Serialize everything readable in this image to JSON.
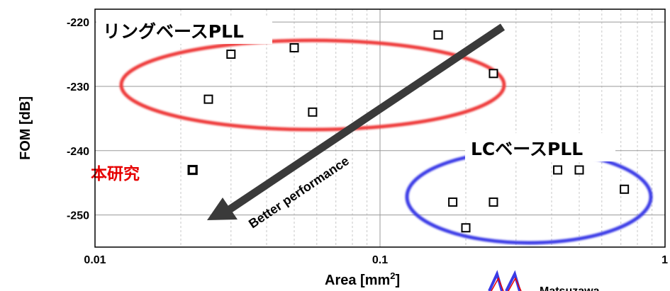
{
  "chart_data": {
    "type": "scatter",
    "xlabel_main": "Area [mm",
    "xlabel_sup": "2",
    "xlabel_end": "]",
    "ylabel": "FOM [dB]",
    "xscale": "log",
    "xlim": [
      0.01,
      1
    ],
    "ylim": [
      -255,
      -218
    ],
    "xticks": [
      0.01,
      0.1,
      1
    ],
    "xtick_labels": [
      "0.01",
      "0.1",
      "1"
    ],
    "yticks": [
      -220,
      -230,
      -240,
      -250
    ],
    "ytick_labels": [
      "-220",
      "-230",
      "-240",
      "-250"
    ],
    "grid": true,
    "series": [
      {
        "points": [
          {
            "x": 0.025,
            "y": -232
          },
          {
            "x": 0.03,
            "y": -225
          },
          {
            "x": 0.05,
            "y": -224
          },
          {
            "x": 0.058,
            "y": -234
          },
          {
            "x": 0.16,
            "y": -222
          },
          {
            "x": 0.25,
            "y": -228
          }
        ]
      },
      {
        "points": [
          {
            "x": 0.18,
            "y": -248
          },
          {
            "x": 0.2,
            "y": -252
          },
          {
            "x": 0.25,
            "y": -248
          },
          {
            "x": 0.42,
            "y": -243
          },
          {
            "x": 0.5,
            "y": -243
          },
          {
            "x": 0.72,
            "y": -246
          }
        ]
      },
      {
        "points": [
          {
            "x": 0.022,
            "y": -243
          }
        ]
      }
    ],
    "annotations": {
      "ring_label": "リングベースPLL",
      "lc_label": "LCベースPLL",
      "this_work_label": "本研究",
      "arrow_label": "Better performance"
    }
  },
  "logo": {
    "text": "Matsuzawa"
  },
  "colors": {
    "ring_ellipse": "#ee3b3b",
    "lc_ellipse": "#3a3ae6",
    "this_work": "#e60000",
    "arrow": "#3a3a3a",
    "grid_minor": "#c8c8c8",
    "grid_major": "#9a9a9a"
  }
}
